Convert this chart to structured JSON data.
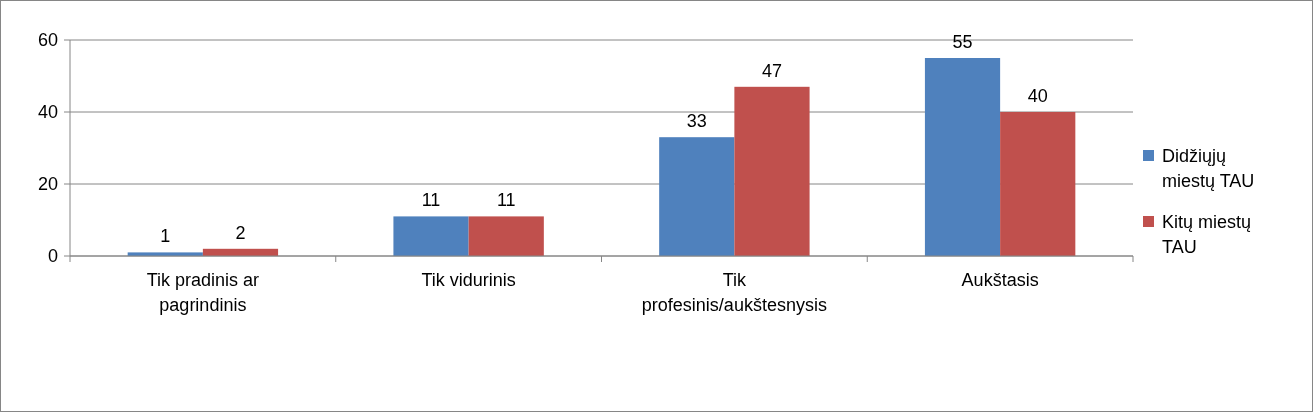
{
  "chart_data": {
    "type": "bar",
    "categories": [
      "Tik pradinis ar pagrindinis",
      "Tik vidurinis",
      "Tik profesinis/aukštesnysis",
      "Aukštasis"
    ],
    "series": [
      {
        "name": "Didžiųjų miestų TAU",
        "color": "#4f81bd",
        "values": [
          1,
          11,
          33,
          55
        ]
      },
      {
        "name": "Kitų miestų TAU",
        "color": "#c0504d",
        "values": [
          2,
          11,
          47,
          40
        ]
      }
    ],
    "ylim": [
      0,
      60
    ],
    "yticks": [
      0,
      20,
      40,
      60
    ],
    "grid": "y",
    "legend": "right",
    "data_labels": true
  }
}
